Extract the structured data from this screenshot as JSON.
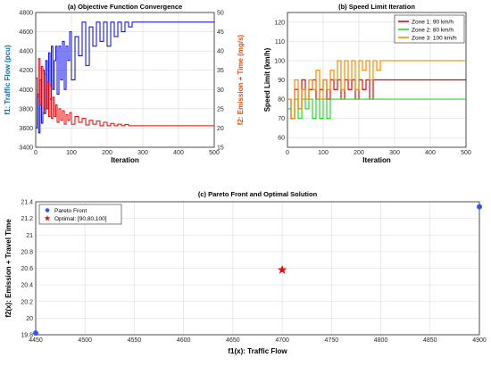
{
  "chart_data": [
    {
      "type": "line",
      "title": "(a) Objective Function Convergence",
      "xlabel": "Iteration",
      "ylabel_left": "f1: Traffic Flow (pcu)",
      "ylabel_right": "f2: Emission + Time (mg/s)",
      "xlim": [
        0,
        500
      ],
      "xticks": [
        0,
        100,
        200,
        300,
        400,
        500
      ],
      "ylim_left": [
        3400,
        4800
      ],
      "yticks_left": [
        3400,
        3600,
        3800,
        4000,
        4200,
        4400,
        4600,
        4800
      ],
      "ylim_right": [
        15,
        50
      ],
      "yticks_right": [
        15,
        20,
        25,
        30,
        35,
        40,
        45,
        50
      ],
      "grid": true,
      "colors": {
        "left": "#0000ee",
        "right": "#ee0000",
        "left_axis": "#0072bd",
        "right_axis": "#d95319"
      },
      "series": [
        {
          "axis": "left",
          "x": [
            0,
            4,
            8,
            12,
            16,
            20,
            24,
            28,
            32,
            36,
            40,
            44,
            48,
            52,
            56,
            60,
            65,
            70,
            75,
            80,
            85,
            90,
            95,
            100,
            110,
            120,
            130,
            140,
            150,
            160,
            170,
            180,
            190,
            200,
            210,
            220,
            230,
            240,
            250,
            260,
            270,
            280,
            500
          ],
          "y": [
            3600,
            3950,
            3550,
            4100,
            3650,
            4200,
            3750,
            4300,
            3800,
            4380,
            3900,
            4450,
            4000,
            4300,
            4450,
            3950,
            4450,
            4100,
            4500,
            4000,
            4450,
            4300,
            4600,
            4100,
            4550,
            4350,
            4700,
            4250,
            4650,
            4450,
            4700,
            4500,
            4700,
            4450,
            4700,
            4550,
            4700,
            4600,
            4700,
            4650,
            4700,
            4700,
            4700
          ]
        },
        {
          "axis": "right",
          "x": [
            0,
            4,
            8,
            12,
            16,
            20,
            24,
            28,
            32,
            36,
            40,
            44,
            48,
            52,
            56,
            60,
            65,
            70,
            75,
            80,
            85,
            90,
            95,
            100,
            110,
            120,
            130,
            140,
            150,
            160,
            170,
            180,
            190,
            200,
            210,
            220,
            230,
            240,
            250,
            260,
            270,
            280,
            500
          ],
          "y": [
            33,
            28,
            38,
            26,
            36,
            24,
            34,
            25,
            32,
            23,
            31,
            22.5,
            28,
            23,
            26,
            21.5,
            25,
            22,
            24.5,
            21,
            23.5,
            22,
            24,
            21,
            23,
            21.5,
            22.5,
            20.8,
            22,
            21,
            21.8,
            20.6,
            21.5,
            20.6,
            21.2,
            20.6,
            21,
            20.6,
            20.9,
            20.6,
            20.6,
            20.6,
            20.6
          ]
        }
      ]
    },
    {
      "type": "line",
      "title": "(b) Speed Limit Iteration",
      "xlabel": "Iteration",
      "ylabel": "Speed Limit (km/h)",
      "xlim": [
        0,
        500
      ],
      "xticks": [
        0,
        100,
        200,
        300,
        400,
        500
      ],
      "ylim": [
        55,
        125
      ],
      "yticks": [
        60,
        70,
        80,
        90,
        100,
        110,
        120
      ],
      "grid": true,
      "legend": "top-right",
      "series": [
        {
          "name": "Zone 1: 90 km/h",
          "color": "#ee0000",
          "x": [
            0,
            10,
            20,
            30,
            40,
            50,
            60,
            70,
            80,
            90,
            100,
            110,
            120,
            130,
            140,
            150,
            160,
            170,
            180,
            190,
            200,
            210,
            220,
            230,
            240,
            500
          ],
          "y": [
            80,
            70,
            85,
            75,
            90,
            80,
            85,
            90,
            80,
            85,
            90,
            80,
            90,
            85,
            90,
            80,
            90,
            85,
            90,
            80,
            90,
            85,
            90,
            80,
            90,
            90
          ]
        },
        {
          "name": "Zone 2: 80 km/h",
          "color": "#22dd22",
          "x": [
            0,
            10,
            20,
            30,
            40,
            50,
            60,
            70,
            80,
            90,
            100,
            110,
            120,
            130,
            500
          ],
          "y": [
            75,
            70,
            80,
            70,
            80,
            75,
            80,
            70,
            80,
            70,
            80,
            70,
            80,
            80,
            80
          ]
        },
        {
          "name": "Zone 3: 100 km/h",
          "color": "#ff8800",
          "x": [
            0,
            10,
            20,
            30,
            40,
            50,
            60,
            70,
            80,
            90,
            100,
            110,
            120,
            130,
            140,
            150,
            160,
            170,
            180,
            190,
            200,
            210,
            220,
            230,
            240,
            250,
            260,
            270,
            500
          ],
          "y": [
            80,
            70,
            90,
            75,
            85,
            80,
            90,
            85,
            95,
            80,
            90,
            85,
            95,
            90,
            100,
            85,
            100,
            90,
            100,
            85,
            100,
            95,
            100,
            90,
            100,
            95,
            100,
            100,
            100
          ]
        }
      ]
    },
    {
      "type": "scatter",
      "title": "(c) Pareto Front and Optimal Solution",
      "xlabel": "f1(x): Traffic Flow",
      "ylabel": "f2(x): Emission + Travel Time",
      "xlim": [
        4450,
        4900
      ],
      "xticks": [
        4450,
        4500,
        4550,
        4600,
        4650,
        4700,
        4750,
        4800,
        4850,
        4900
      ],
      "ylim": [
        19.8,
        21.4
      ],
      "yticks": [
        19.8,
        20,
        20.2,
        20.4,
        20.6,
        20.8,
        21,
        21.2,
        21.4
      ],
      "grid": true,
      "legend": "top-left",
      "series": [
        {
          "name": "Pareto Front",
          "marker": "circle",
          "color": "#3355ee",
          "x": [
            4450,
            4900
          ],
          "y": [
            19.82,
            21.34
          ]
        },
        {
          "name": "Optimal: [90,80,100]",
          "marker": "star",
          "color": "#dd1111",
          "x": [
            4700
          ],
          "y": [
            20.58
          ]
        }
      ]
    }
  ]
}
